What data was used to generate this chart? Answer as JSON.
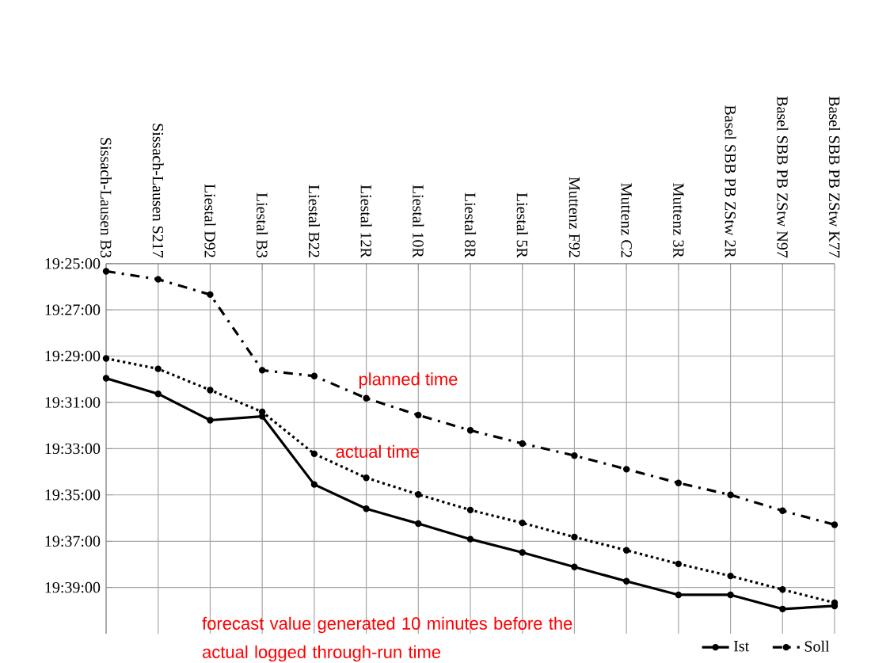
{
  "chart_data": {
    "type": "line",
    "categories": [
      "Sissach-Lausen B3",
      "Sissach-Lausen S217",
      "Liestal D92",
      "Liestal B3",
      "Liestal B22",
      "Liestal 12R",
      "Liestal 10R",
      "Liestal 8R",
      "Liestal 5R",
      "Muttenz F92",
      "Muttenz C2",
      "Muttenz 3R",
      "Basel SBB PB ZStw 2R",
      "Basel SBB PB ZStw N97",
      "Basel SBB PB ZStw K77"
    ],
    "series": [
      {
        "name": "Ist",
        "color": "#000000",
        "line_style": "solid",
        "values": [
          19.4993,
          19.5105,
          19.5295,
          19.5267,
          19.5758,
          19.5933,
          19.604,
          19.6152,
          19.6248,
          19.6352,
          19.6455,
          19.6553,
          19.6553,
          19.6655,
          19.6633
        ]
      },
      {
        "color": "#000000",
        "line_style": "dotted",
        "values": [
          19.485,
          19.4925,
          19.5078,
          19.5235,
          19.5537,
          19.571,
          19.583,
          19.5942,
          19.6035,
          19.6137,
          19.6232,
          19.633,
          19.6417,
          19.6515,
          19.661
        ]
      },
      {
        "name": "Soll",
        "color": "#000000",
        "line_style": "dashdot",
        "values": [
          19.4222,
          19.428,
          19.439,
          19.4935,
          19.4977,
          19.5137,
          19.5258,
          19.5368,
          19.5463,
          19.555,
          19.5648,
          19.5747,
          19.5833,
          19.5947,
          19.6048
        ]
      }
    ],
    "ylim": [
      19.6833,
      19.4167
    ],
    "yticks": [
      {
        "value": 19.4167,
        "label": "19:25:00"
      },
      {
        "value": 19.45,
        "label": "19:27:00"
      },
      {
        "value": 19.4833,
        "label": "19:29:00"
      },
      {
        "value": 19.5167,
        "label": "19:31:00"
      },
      {
        "value": 19.55,
        "label": "19:33:00"
      },
      {
        "value": 19.5833,
        "label": "19:35:00"
      },
      {
        "value": 19.6167,
        "label": "19:37:00"
      },
      {
        "value": 19.65,
        "label": "19:39:00"
      }
    ],
    "grid": true,
    "legend": "bottom right",
    "marker": "circle",
    "annotations": [
      "planned time",
      "actual time",
      "forecast value generated 10 minutes before the actual logged through-run time"
    ]
  }
}
